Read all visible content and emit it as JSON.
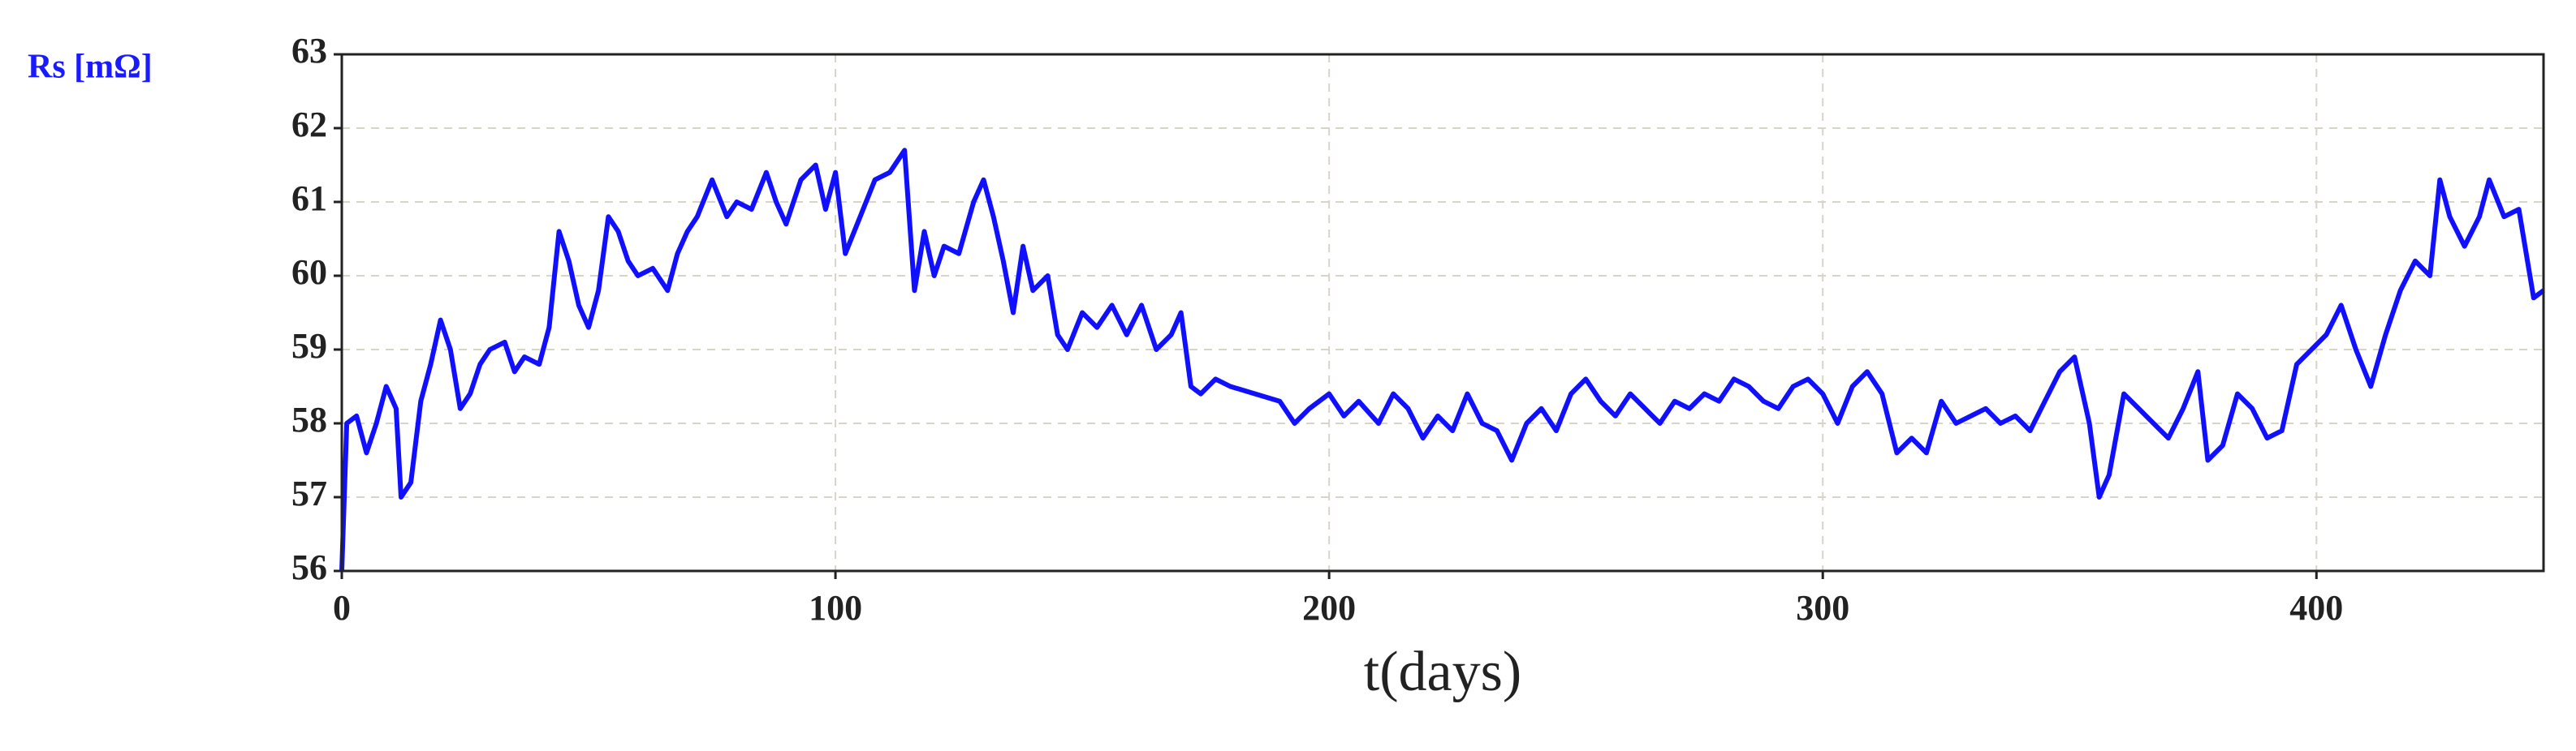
{
  "chart_data": {
    "type": "line",
    "y_label": "Rs [mΩ]",
    "x_label": "t(days)",
    "color": "#1010ff",
    "grid": true,
    "xlim": [
      0,
      446
    ],
    "ylim": [
      56,
      63
    ],
    "xticks": [
      0,
      100,
      200,
      300,
      400
    ],
    "yticks": [
      56,
      57,
      58,
      59,
      60,
      61,
      62,
      63
    ],
    "x": [
      0,
      1,
      3,
      5,
      7,
      9,
      11,
      12,
      14,
      16,
      18,
      20,
      22,
      24,
      26,
      28,
      30,
      33,
      35,
      37,
      40,
      42,
      44,
      46,
      48,
      50,
      52,
      54,
      56,
      58,
      60,
      63,
      66,
      68,
      70,
      72,
      75,
      78,
      80,
      83,
      86,
      88,
      90,
      93,
      96,
      98,
      100,
      102,
      105,
      108,
      111,
      114,
      116,
      118,
      120,
      122,
      125,
      128,
      130,
      132,
      134,
      136,
      138,
      140,
      143,
      145,
      147,
      150,
      153,
      156,
      159,
      162,
      165,
      168,
      170,
      172,
      174,
      177,
      180,
      185,
      190,
      193,
      196,
      200,
      203,
      206,
      210,
      213,
      216,
      219,
      222,
      225,
      228,
      231,
      234,
      237,
      240,
      243,
      246,
      249,
      252,
      255,
      258,
      261,
      264,
      267,
      270,
      273,
      276,
      279,
      282,
      285,
      288,
      291,
      294,
      297,
      300,
      303,
      306,
      309,
      312,
      315,
      318,
      321,
      324,
      327,
      330,
      333,
      336,
      339,
      342,
      345,
      348,
      351,
      354,
      356,
      358,
      361,
      364,
      367,
      370,
      373,
      376,
      378,
      381,
      384,
      387,
      390,
      393,
      396,
      399,
      402,
      405,
      408,
      411,
      414,
      417,
      420,
      423,
      425,
      427,
      430,
      433,
      435,
      438,
      441,
      444,
      446
    ],
    "values": [
      56.0,
      58.0,
      58.1,
      57.6,
      58.0,
      58.5,
      58.2,
      57.0,
      57.2,
      58.3,
      58.8,
      59.4,
      59.0,
      58.2,
      58.4,
      58.8,
      59.0,
      59.1,
      58.7,
      58.9,
      58.8,
      59.3,
      60.6,
      60.2,
      59.6,
      59.3,
      59.8,
      60.8,
      60.6,
      60.2,
      60.0,
      60.1,
      59.8,
      60.3,
      60.6,
      60.8,
      61.3,
      60.8,
      61.0,
      60.9,
      61.4,
      61.0,
      60.7,
      61.3,
      61.5,
      60.9,
      61.4,
      60.3,
      60.8,
      61.3,
      61.4,
      61.7,
      59.8,
      60.6,
      60.0,
      60.4,
      60.3,
      61.0,
      61.3,
      60.8,
      60.2,
      59.5,
      60.4,
      59.8,
      60.0,
      59.2,
      59.0,
      59.5,
      59.3,
      59.6,
      59.2,
      59.6,
      59.0,
      59.2,
      59.5,
      58.5,
      58.4,
      58.6,
      58.5,
      58.4,
      58.3,
      58.0,
      58.2,
      58.4,
      58.1,
      58.3,
      58.0,
      58.4,
      58.2,
      57.8,
      58.1,
      57.9,
      58.4,
      58.0,
      57.9,
      57.5,
      58.0,
      58.2,
      57.9,
      58.4,
      58.6,
      58.3,
      58.1,
      58.4,
      58.2,
      58.0,
      58.3,
      58.2,
      58.4,
      58.3,
      58.6,
      58.5,
      58.3,
      58.2,
      58.5,
      58.6,
      58.4,
      58.0,
      58.5,
      58.7,
      58.4,
      57.6,
      57.8,
      57.6,
      58.3,
      58.0,
      58.1,
      58.2,
      58.0,
      58.1,
      57.9,
      58.3,
      58.7,
      58.9,
      58.0,
      57.0,
      57.3,
      58.4,
      58.2,
      58.0,
      57.8,
      58.2,
      58.7,
      57.5,
      57.7,
      58.4,
      58.2,
      57.8,
      57.9,
      58.8,
      59.0,
      59.2,
      59.6,
      59.0,
      58.5,
      59.2,
      59.8,
      60.2,
      60.0,
      61.3,
      60.8,
      60.4,
      60.8,
      61.3,
      60.8,
      60.9,
      59.7,
      59.8
    ]
  }
}
